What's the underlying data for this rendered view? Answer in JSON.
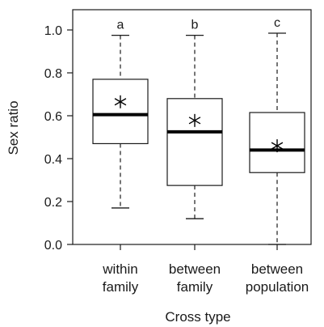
{
  "chart_data": {
    "type": "box",
    "title": "",
    "xlabel": "Cross type",
    "ylabel": "Sex ratio",
    "ylim": [
      0,
      1.1
    ],
    "yticks": [
      "0.0",
      "0.2",
      "0.4",
      "0.6",
      "0.8",
      "1.0"
    ],
    "grid": false,
    "categories": [
      {
        "label_line1": "within",
        "label_line2": "family",
        "letter": "a",
        "whisker_low": 0.17,
        "q1": 0.47,
        "median": 0.605,
        "q3": 0.77,
        "whisker_high": 0.975,
        "mean": 0.665
      },
      {
        "label_line1": "between",
        "label_line2": "family",
        "letter": "b",
        "whisker_low": 0.12,
        "q1": 0.275,
        "median": 0.525,
        "q3": 0.68,
        "whisker_high": 0.975,
        "mean": 0.578
      },
      {
        "label_line1": "between",
        "label_line2": "population",
        "letter": "c",
        "whisker_low": 0.0,
        "q1": 0.335,
        "median": 0.44,
        "q3": 0.615,
        "whisker_high": 0.985,
        "mean": 0.46
      }
    ]
  }
}
